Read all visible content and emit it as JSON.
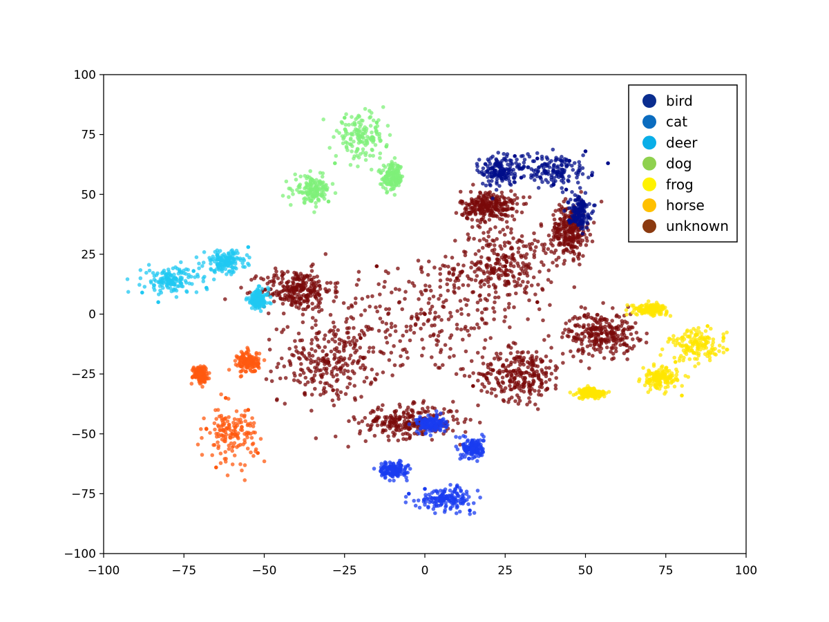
{
  "chart_data": {
    "type": "scatter",
    "title": "",
    "xlabel": "",
    "ylabel": "",
    "xlim": [
      -100,
      100
    ],
    "ylim": [
      -100,
      100
    ],
    "x_ticks": [
      -100,
      -75,
      -50,
      -25,
      0,
      25,
      50,
      75,
      100
    ],
    "y_ticks": [
      -100,
      -75,
      -50,
      -25,
      0,
      25,
      50,
      75,
      100
    ],
    "x_tick_labels": [
      "−100",
      "−75",
      "−50",
      "−25",
      "0",
      "25",
      "50",
      "75",
      "100"
    ],
    "y_tick_labels": [
      "−100",
      "−75",
      "−50",
      "−25",
      "0",
      "25",
      "50",
      "75",
      "100"
    ],
    "grid": false,
    "legend_position": "top-right",
    "legend": [
      {
        "name": "bird",
        "color": "#0a2d8f"
      },
      {
        "name": "cat",
        "color": "#0b6cbf"
      },
      {
        "name": "deer",
        "color": "#0aaee8"
      },
      {
        "name": "dog",
        "color": "#8fd14f"
      },
      {
        "name": "frog",
        "color": "#fff200"
      },
      {
        "name": "horse",
        "color": "#ffc000"
      },
      {
        "name": "unknown",
        "color": "#8b3a10"
      }
    ],
    "series": [
      {
        "name": "bird",
        "color": "#000d8a",
        "clusters": [
          [
            40,
            60,
            10,
            7
          ],
          [
            23,
            60,
            5,
            6
          ],
          [
            48,
            43,
            3,
            6
          ]
        ],
        "sample_points": [
          [
            40,
            60
          ],
          [
            35,
            65
          ],
          [
            45,
            64
          ],
          [
            52,
            58
          ],
          [
            30,
            57
          ],
          [
            44,
            52
          ],
          [
            57,
            63
          ],
          [
            28,
            66
          ],
          [
            40,
            54
          ],
          [
            50,
            68
          ]
        ]
      },
      {
        "name": "cat",
        "color": "#1a3cf0",
        "clusters": [
          [
            7,
            -77,
            8,
            4
          ],
          [
            -10,
            -65,
            4,
            3
          ],
          [
            2,
            -46,
            4,
            3
          ],
          [
            15,
            -56,
            3,
            4
          ]
        ],
        "sample_points": [
          [
            7,
            -77
          ],
          [
            0,
            -73
          ],
          [
            14,
            -82
          ],
          [
            -10,
            -65
          ],
          [
            2,
            -46
          ],
          [
            15,
            -56
          ],
          [
            -5,
            -75
          ],
          [
            10,
            -72
          ]
        ]
      },
      {
        "name": "deer",
        "color": "#20c8f2",
        "clusters": [
          [
            -79,
            14,
            8,
            5
          ],
          [
            -62,
            22,
            6,
            4
          ],
          [
            -52,
            6,
            3,
            4
          ]
        ],
        "sample_points": [
          [
            -79,
            14
          ],
          [
            -88,
            9
          ],
          [
            -72,
            18
          ],
          [
            -62,
            22
          ],
          [
            -55,
            28
          ],
          [
            -52,
            6
          ],
          [
            -83,
            5
          ],
          [
            -68,
            11
          ]
        ]
      },
      {
        "name": "dog",
        "color": "#7ff07a",
        "clusters": [
          [
            -20,
            74,
            7,
            8
          ],
          [
            -10,
            57,
            3,
            5
          ],
          [
            -35,
            52,
            5,
            5
          ]
        ],
        "sample_points": [
          [
            -20,
            74
          ],
          [
            -25,
            82
          ],
          [
            -12,
            70
          ],
          [
            -10,
            57
          ],
          [
            -35,
            52
          ],
          [
            -28,
            63
          ],
          [
            -15,
            80
          ],
          [
            -30,
            47
          ]
        ]
      },
      {
        "name": "frog",
        "color": "#ffe600",
        "clusters": [
          [
            85,
            -13,
            8,
            6
          ],
          [
            73,
            -27,
            5,
            4
          ],
          [
            52,
            -33,
            4,
            2
          ],
          [
            70,
            2,
            5,
            2
          ]
        ],
        "sample_points": [
          [
            85,
            -13
          ],
          [
            93,
            -10
          ],
          [
            78,
            -20
          ],
          [
            73,
            -27
          ],
          [
            80,
            -34
          ],
          [
            52,
            -33
          ],
          [
            70,
            2
          ],
          [
            88,
            -5
          ]
        ]
      },
      {
        "name": "horse",
        "color": "#ff5a10",
        "clusters": [
          [
            -60,
            -50,
            7,
            10
          ],
          [
            -70,
            -25,
            2,
            3
          ],
          [
            -55,
            -20,
            3,
            4
          ]
        ],
        "sample_points": [
          [
            -60,
            -50
          ],
          [
            -65,
            -64
          ],
          [
            -55,
            -40
          ],
          [
            -70,
            -25
          ],
          [
            -55,
            -20
          ],
          [
            -68,
            -48
          ],
          [
            -52,
            -58
          ],
          [
            -62,
            -35
          ]
        ]
      },
      {
        "name": "unknown",
        "color": "#7a0a0a",
        "clusters": [
          [
            0,
            0,
            28,
            24
          ],
          [
            25,
            20,
            14,
            14
          ],
          [
            -30,
            -20,
            14,
            15
          ],
          [
            -40,
            10,
            10,
            8
          ],
          [
            30,
            -25,
            12,
            10
          ],
          [
            -5,
            -45,
            14,
            6
          ],
          [
            55,
            -8,
            10,
            8
          ],
          [
            20,
            45,
            8,
            6
          ],
          [
            45,
            35,
            5,
            10
          ]
        ],
        "sample_points": [
          [
            0,
            0
          ],
          [
            10,
            15
          ],
          [
            -15,
            20
          ],
          [
            25,
            20
          ],
          [
            -30,
            -20
          ],
          [
            -40,
            10
          ],
          [
            30,
            -25
          ],
          [
            -5,
            -45
          ],
          [
            55,
            -8
          ],
          [
            20,
            45
          ],
          [
            45,
            35
          ],
          [
            -20,
            -10
          ],
          [
            15,
            -30
          ],
          [
            35,
            5
          ]
        ]
      }
    ]
  }
}
